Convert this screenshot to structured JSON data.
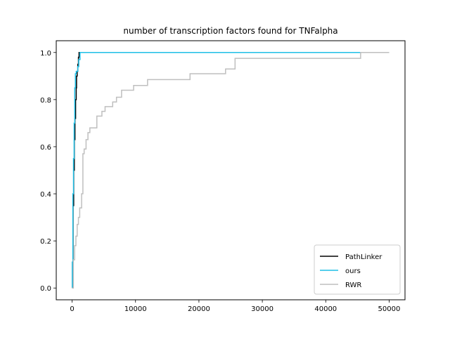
{
  "chart_data": {
    "type": "line",
    "title": "number of transcription factors found for TNFalpha",
    "xlabel": "",
    "ylabel": "",
    "xlim": [
      -2500,
      52500
    ],
    "ylim": [
      -0.05,
      1.05
    ],
    "xticks": [
      0,
      10000,
      20000,
      30000,
      40000,
      50000
    ],
    "yticks": [
      0.0,
      0.2,
      0.4,
      0.6,
      0.8,
      1.0
    ],
    "xtick_labels": [
      "0",
      "10000",
      "20000",
      "30000",
      "40000",
      "50000"
    ],
    "ytick_labels": [
      "0.0",
      "0.2",
      "0.4",
      "0.6",
      "0.8",
      "1.0"
    ],
    "grid": false,
    "legend_position": "lower-right",
    "series": [
      {
        "name": "PathLinker",
        "color": "#000000",
        "step": true,
        "points": [
          [
            0,
            0.0
          ],
          [
            50,
            0.11
          ],
          [
            150,
            0.35
          ],
          [
            250,
            0.5
          ],
          [
            350,
            0.63
          ],
          [
            450,
            0.72
          ],
          [
            550,
            0.8
          ],
          [
            650,
            0.85
          ],
          [
            700,
            0.9
          ],
          [
            800,
            0.92
          ],
          [
            900,
            0.95
          ],
          [
            1000,
            0.98
          ],
          [
            1100,
            1.0
          ],
          [
            1300,
            1.0
          ]
        ]
      },
      {
        "name": "ours",
        "color": "#1ebfe6",
        "step": true,
        "points": [
          [
            0,
            0.0
          ],
          [
            30,
            0.11
          ],
          [
            120,
            0.4
          ],
          [
            220,
            0.55
          ],
          [
            320,
            0.7
          ],
          [
            420,
            0.85
          ],
          [
            520,
            0.91
          ],
          [
            650,
            0.92
          ],
          [
            900,
            0.94
          ],
          [
            1050,
            0.97
          ],
          [
            1250,
            1.0
          ],
          [
            50000,
            1.0
          ]
        ]
      },
      {
        "name": "RWR",
        "color": "#bfbfbf",
        "step": true,
        "points": [
          [
            0,
            0.0
          ],
          [
            200,
            0.12
          ],
          [
            400,
            0.18
          ],
          [
            600,
            0.22
          ],
          [
            800,
            0.27
          ],
          [
            1000,
            0.3
          ],
          [
            1200,
            0.34
          ],
          [
            1500,
            0.4
          ],
          [
            1700,
            0.57
          ],
          [
            1900,
            0.59
          ],
          [
            2200,
            0.63
          ],
          [
            2500,
            0.66
          ],
          [
            2800,
            0.68
          ],
          [
            3900,
            0.73
          ],
          [
            4700,
            0.75
          ],
          [
            5200,
            0.77
          ],
          [
            6400,
            0.79
          ],
          [
            7000,
            0.81
          ],
          [
            7800,
            0.84
          ],
          [
            9700,
            0.86
          ],
          [
            11900,
            0.885
          ],
          [
            18600,
            0.91
          ],
          [
            24200,
            0.93
          ],
          [
            25700,
            0.975
          ],
          [
            45500,
            1.0
          ],
          [
            50000,
            1.0
          ]
        ]
      }
    ]
  }
}
